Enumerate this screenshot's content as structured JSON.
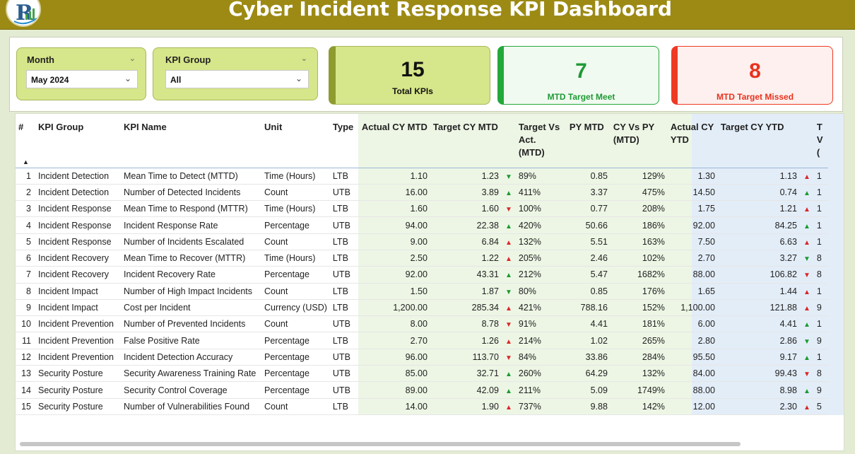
{
  "header": {
    "title": "Cyber Incident Response KPI Dashboard"
  },
  "filters": {
    "month": {
      "label": "Month",
      "value": "May 2024"
    },
    "kpi_group": {
      "label": "KPI Group",
      "value": "All"
    }
  },
  "cards": {
    "total": {
      "value": "15",
      "label": "Total KPIs"
    },
    "meet": {
      "value": "7",
      "label": "MTD Target Meet"
    },
    "missed": {
      "value": "8",
      "label": "MTD Target Missed"
    }
  },
  "table": {
    "columns": [
      "#",
      "KPI Group",
      "KPI Name",
      "Unit",
      "Type",
      "Actual CY MTD",
      "Target CY MTD",
      "",
      "Target Vs Act. (MTD)",
      "PY MTD",
      "CY Vs PY (MTD)",
      "Actual CY YTD",
      "Target CY YTD",
      "",
      "T V ("
    ],
    "rows": [
      {
        "n": "1",
        "group": "Incident Detection",
        "name": "Mean Time to Detect (MTTD)",
        "unit": "Time (Hours)",
        "type": "LTB",
        "act_mtd": "1.10",
        "tgt_mtd": "1.23",
        "ind_mtd": "dn-green",
        "tva_mtd": "89%",
        "py_mtd": "0.85",
        "cvp_mtd": "129%",
        "act_ytd": "1.30",
        "tgt_ytd": "1.13",
        "ind_ytd": "up-red",
        "tva_ytd": "1"
      },
      {
        "n": "2",
        "group": "Incident Detection",
        "name": "Number of Detected Incidents",
        "unit": "Count",
        "type": "UTB",
        "act_mtd": "16.00",
        "tgt_mtd": "3.89",
        "ind_mtd": "up",
        "tva_mtd": "411%",
        "py_mtd": "3.37",
        "cvp_mtd": "475%",
        "act_ytd": "14.50",
        "tgt_ytd": "0.74",
        "ind_ytd": "up",
        "tva_ytd": "1"
      },
      {
        "n": "3",
        "group": "Incident Response",
        "name": "Mean Time to Respond (MTTR)",
        "unit": "Time (Hours)",
        "type": "LTB",
        "act_mtd": "1.60",
        "tgt_mtd": "1.60",
        "ind_mtd": "dn-red",
        "tva_mtd": "100%",
        "py_mtd": "0.77",
        "cvp_mtd": "208%",
        "act_ytd": "1.75",
        "tgt_ytd": "1.21",
        "ind_ytd": "up-red",
        "tva_ytd": "1"
      },
      {
        "n": "4",
        "group": "Incident Response",
        "name": "Incident Response Rate",
        "unit": "Percentage",
        "type": "UTB",
        "act_mtd": "94.00",
        "tgt_mtd": "22.38",
        "ind_mtd": "up",
        "tva_mtd": "420%",
        "py_mtd": "50.66",
        "cvp_mtd": "186%",
        "act_ytd": "92.00",
        "tgt_ytd": "84.25",
        "ind_ytd": "up",
        "tva_ytd": "1"
      },
      {
        "n": "5",
        "group": "Incident Response",
        "name": "Number of Incidents Escalated",
        "unit": "Count",
        "type": "LTB",
        "act_mtd": "9.00",
        "tgt_mtd": "6.84",
        "ind_mtd": "up-red",
        "tva_mtd": "132%",
        "py_mtd": "5.51",
        "cvp_mtd": "163%",
        "act_ytd": "7.50",
        "tgt_ytd": "6.63",
        "ind_ytd": "up-red",
        "tva_ytd": "1"
      },
      {
        "n": "6",
        "group": "Incident Recovery",
        "name": "Mean Time to Recover (MTTR)",
        "unit": "Time (Hours)",
        "type": "LTB",
        "act_mtd": "2.50",
        "tgt_mtd": "1.22",
        "ind_mtd": "up-red",
        "tva_mtd": "205%",
        "py_mtd": "2.46",
        "cvp_mtd": "102%",
        "act_ytd": "2.70",
        "tgt_ytd": "3.27",
        "ind_ytd": "dn-green",
        "tva_ytd": "8"
      },
      {
        "n": "7",
        "group": "Incident Recovery",
        "name": "Incident Recovery Rate",
        "unit": "Percentage",
        "type": "UTB",
        "act_mtd": "92.00",
        "tgt_mtd": "43.31",
        "ind_mtd": "up",
        "tva_mtd": "212%",
        "py_mtd": "5.47",
        "cvp_mtd": "1682%",
        "act_ytd": "88.00",
        "tgt_ytd": "106.82",
        "ind_ytd": "dn-red",
        "tva_ytd": "8"
      },
      {
        "n": "8",
        "group": "Incident Impact",
        "name": "Number of High Impact Incidents",
        "unit": "Count",
        "type": "LTB",
        "act_mtd": "1.50",
        "tgt_mtd": "1.87",
        "ind_mtd": "dn-green",
        "tva_mtd": "80%",
        "py_mtd": "0.85",
        "cvp_mtd": "176%",
        "act_ytd": "1.65",
        "tgt_ytd": "1.44",
        "ind_ytd": "up-red",
        "tva_ytd": "1"
      },
      {
        "n": "9",
        "group": "Incident Impact",
        "name": "Cost per Incident",
        "unit": "Currency (USD)",
        "type": "LTB",
        "act_mtd": "1,200.00",
        "tgt_mtd": "285.34",
        "ind_mtd": "up-red",
        "tva_mtd": "421%",
        "py_mtd": "788.16",
        "cvp_mtd": "152%",
        "act_ytd": "1,100.00",
        "tgt_ytd": "121.88",
        "ind_ytd": "up-red",
        "tva_ytd": "9"
      },
      {
        "n": "10",
        "group": "Incident Prevention",
        "name": "Number of Prevented Incidents",
        "unit": "Count",
        "type": "UTB",
        "act_mtd": "8.00",
        "tgt_mtd": "8.78",
        "ind_mtd": "dn-red",
        "tva_mtd": "91%",
        "py_mtd": "4.41",
        "cvp_mtd": "181%",
        "act_ytd": "6.00",
        "tgt_ytd": "4.41",
        "ind_ytd": "up",
        "tva_ytd": "1"
      },
      {
        "n": "11",
        "group": "Incident Prevention",
        "name": "False Positive Rate",
        "unit": "Percentage",
        "type": "LTB",
        "act_mtd": "2.70",
        "tgt_mtd": "1.26",
        "ind_mtd": "up-red",
        "tva_mtd": "214%",
        "py_mtd": "1.02",
        "cvp_mtd": "265%",
        "act_ytd": "2.80",
        "tgt_ytd": "2.86",
        "ind_ytd": "dn-green",
        "tva_ytd": "9"
      },
      {
        "n": "12",
        "group": "Incident Prevention",
        "name": "Incident Detection Accuracy",
        "unit": "Percentage",
        "type": "UTB",
        "act_mtd": "96.00",
        "tgt_mtd": "113.70",
        "ind_mtd": "dn-red",
        "tva_mtd": "84%",
        "py_mtd": "33.86",
        "cvp_mtd": "284%",
        "act_ytd": "95.50",
        "tgt_ytd": "9.17",
        "ind_ytd": "up",
        "tva_ytd": "1"
      },
      {
        "n": "13",
        "group": "Security Posture",
        "name": "Security Awareness Training Rate",
        "unit": "Percentage",
        "type": "UTB",
        "act_mtd": "85.00",
        "tgt_mtd": "32.71",
        "ind_mtd": "up",
        "tva_mtd": "260%",
        "py_mtd": "64.29",
        "cvp_mtd": "132%",
        "act_ytd": "84.00",
        "tgt_ytd": "99.43",
        "ind_ytd": "dn-red",
        "tva_ytd": "8"
      },
      {
        "n": "14",
        "group": "Security Posture",
        "name": "Security Control Coverage",
        "unit": "Percentage",
        "type": "UTB",
        "act_mtd": "89.00",
        "tgt_mtd": "42.09",
        "ind_mtd": "up",
        "tva_mtd": "211%",
        "py_mtd": "5.09",
        "cvp_mtd": "1749%",
        "act_ytd": "88.00",
        "tgt_ytd": "8.98",
        "ind_ytd": "up",
        "tva_ytd": "9"
      },
      {
        "n": "15",
        "group": "Security Posture",
        "name": "Number of Vulnerabilities Found",
        "unit": "Count",
        "type": "LTB",
        "act_mtd": "14.00",
        "tgt_mtd": "1.90",
        "ind_mtd": "up-red",
        "tva_mtd": "737%",
        "py_mtd": "9.88",
        "cvp_mtd": "142%",
        "act_ytd": "12.00",
        "tgt_ytd": "2.30",
        "ind_ytd": "up-red",
        "tva_ytd": "5"
      }
    ]
  },
  "colors": {
    "title_bar": "#9c8a14",
    "slicer_bg": "#d6e68a",
    "card_total_bg": "#d6e68a",
    "card_meet_accent": "#23a83a",
    "card_missed_accent": "#ee3a24",
    "up_green": "#1a9a32",
    "down_red": "#d8262a"
  },
  "icons": {
    "logo": "rk-logo",
    "slicer_chevron": "chevron-down-icon",
    "dropdown": "dropdown-arrow-icon",
    "sort": "sort-ascending-icon",
    "indicator_up": "triangle-up-icon",
    "indicator_down": "triangle-down-icon"
  }
}
